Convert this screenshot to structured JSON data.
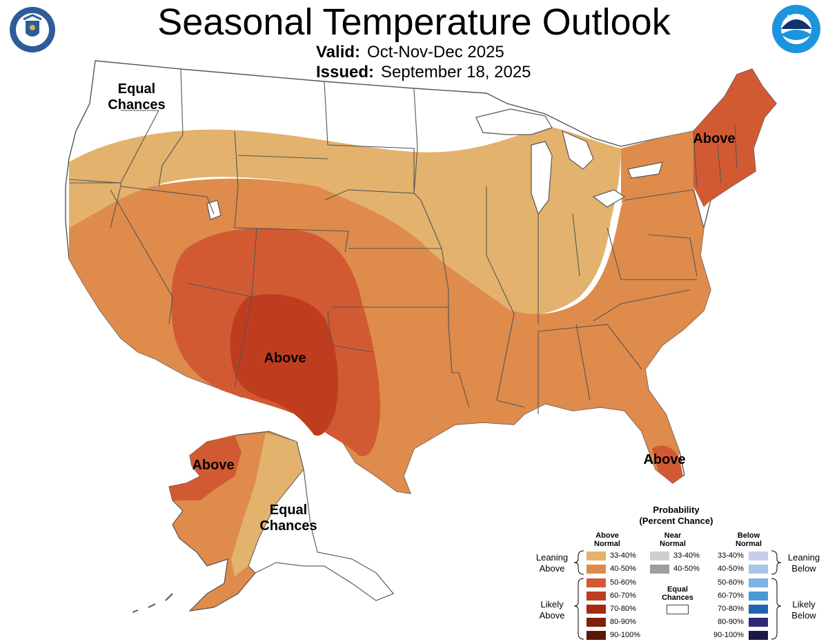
{
  "header": {
    "title": "Seasonal Temperature Outlook",
    "valid_label": "Valid:",
    "valid_value": "Oct-Nov-Dec 2025",
    "issued_label": "Issued:",
    "issued_value": "September 18, 2025"
  },
  "logos": {
    "left": "doc-seal-icon",
    "right": "noaa-logo-icon"
  },
  "map_labels": {
    "northwest": "Equal Chances",
    "northwest_line1": "Equal",
    "northwest_line2": "Chances",
    "northeast": "Above",
    "southwest": "Above",
    "florida": "Above",
    "alaska_west": "Above",
    "alaska_east_line1": "Equal",
    "alaska_east_line2": "Chances"
  },
  "colors": {
    "above_33_40": "#E3B26D",
    "above_40_50": "#DE8B4C",
    "above_50_60": "#D25A33",
    "above_60_70": "#BF3D1F",
    "above_70_80": "#A52A0E",
    "above_80_90": "#7E2106",
    "above_90_100": "#5A1A04",
    "near_33_40": "#CFCFCF",
    "near_40_50": "#9E9E9E",
    "below_33_40": "#C7CDE8",
    "below_40_50": "#A8C7E7",
    "below_50_60": "#7DB3E2",
    "below_60_70": "#4A9AD8",
    "below_70_80": "#1F64AE",
    "below_80_90": "#2B2B7A",
    "below_90_100": "#1C1748"
  },
  "legend": {
    "title_line1": "Probability",
    "title_line2": "(Percent Chance)",
    "above_header": "Above Normal",
    "above_header_l1": "Above",
    "above_header_l2": "Normal",
    "near_header_l1": "Near",
    "near_header_l2": "Normal",
    "below_header_l1": "Below",
    "below_header_l2": "Normal",
    "equal_chances_l1": "Equal",
    "equal_chances_l2": "Chances",
    "leaning_above_l1": "Leaning",
    "leaning_above_l2": "Above",
    "likely_above_l1": "Likely",
    "likely_above_l2": "Above",
    "leaning_below_l1": "Leaning",
    "leaning_below_l2": "Below",
    "likely_below_l1": "Likely",
    "likely_below_l2": "Below",
    "above_ranges": [
      "33-40%",
      "40-50%",
      "50-60%",
      "60-70%",
      "70-80%",
      "80-90%",
      "90-100%"
    ],
    "near_ranges": [
      "33-40%",
      "40-50%"
    ],
    "below_ranges": [
      "33-40%",
      "40-50%",
      "50-60%",
      "60-70%",
      "70-80%",
      "80-90%",
      "90-100%"
    ]
  }
}
